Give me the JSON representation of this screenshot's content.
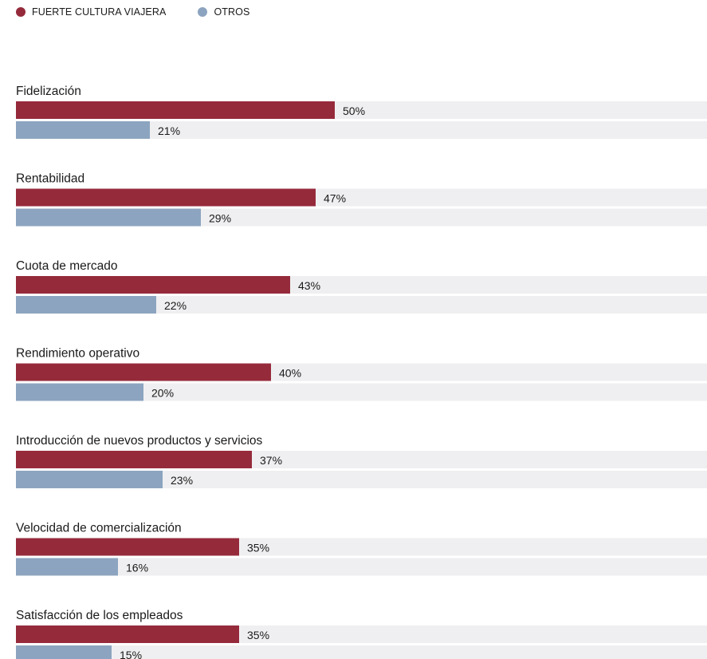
{
  "legend": {
    "series_a": "FUERTE CULTURA VIAJERA",
    "series_b": "OTROS"
  },
  "colors": {
    "series_a": "#952a3b",
    "series_b": "#8ca4bf",
    "track": "#efeff1"
  },
  "chart_data": {
    "type": "bar",
    "orientation": "horizontal",
    "categories": [
      "Fidelización",
      "Rentabilidad",
      "Cuota de mercado",
      "Rendimiento operativo",
      "Introducción de nuevos productos y servicios",
      "Velocidad de comercialización",
      "Satisfacción de los empleados"
    ],
    "series": [
      {
        "name": "FUERTE CULTURA VIAJERA",
        "values": [
          50,
          47,
          43,
          40,
          37,
          35,
          35
        ]
      },
      {
        "name": "OTROS",
        "values": [
          21,
          29,
          22,
          20,
          23,
          16,
          15
        ]
      }
    ],
    "value_suffix": "%",
    "xlim": [
      0,
      100
    ],
    "grid": false,
    "legend_position": "top-left"
  }
}
